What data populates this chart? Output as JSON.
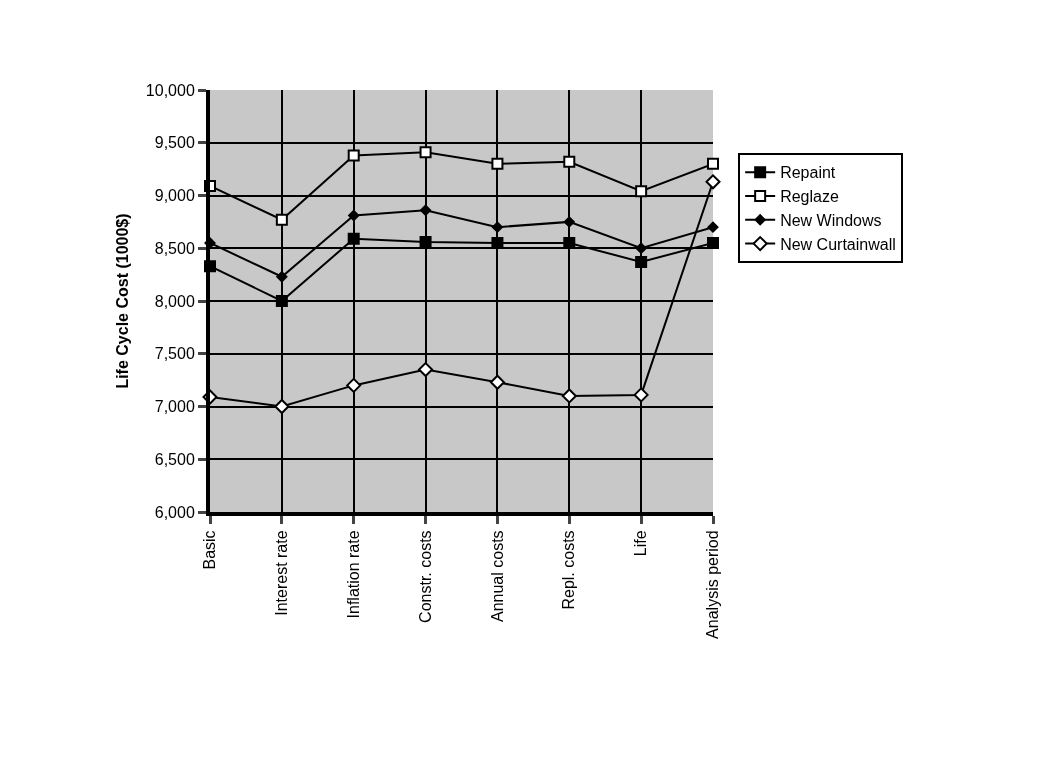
{
  "chart_data": {
    "type": "line",
    "ylabel": "Life Cycle Cost (1000$)",
    "categories": [
      "Basic",
      "Interest rate",
      "Inflation rate",
      "Constr. costs",
      "Annual costs",
      "Repl. costs",
      "Life",
      "Analysis period"
    ],
    "series": [
      {
        "name": "Repaint",
        "color": "#000000",
        "marker": "square",
        "values": [
          8330,
          8000,
          8590,
          8560,
          8550,
          8550,
          8370,
          8550
        ]
      },
      {
        "name": "Reglaze",
        "color": "#000000",
        "marker": "square",
        "values": [
          9090,
          8770,
          9380,
          9410,
          9300,
          9320,
          9040,
          9300
        ]
      },
      {
        "name": "New Windows",
        "color": "#000000",
        "marker": "diamond",
        "values": [
          8550,
          8230,
          8810,
          8860,
          8700,
          8750,
          8500,
          8700
        ]
      },
      {
        "name": "New Curtainwall",
        "color": "#000000",
        "marker": "diamond",
        "values": [
          7090,
          7000,
          7200,
          7350,
          7230,
          7100,
          7110,
          9130
        ]
      }
    ],
    "ylim": [
      6000,
      10000
    ],
    "yticks": [
      {
        "value": 6000,
        "label": "6,000"
      },
      {
        "value": 6500,
        "label": "6,500"
      },
      {
        "value": 7000,
        "label": "7,000"
      },
      {
        "value": 7500,
        "label": "7,500"
      },
      {
        "value": 8000,
        "label": "8,000"
      },
      {
        "value": 8500,
        "label": "8,500"
      },
      {
        "value": 9000,
        "label": "9,000"
      },
      {
        "value": 9500,
        "label": "9,500"
      },
      {
        "value": 10000,
        "label": "10,000"
      }
    ],
    "grid": true,
    "legend": "right"
  }
}
